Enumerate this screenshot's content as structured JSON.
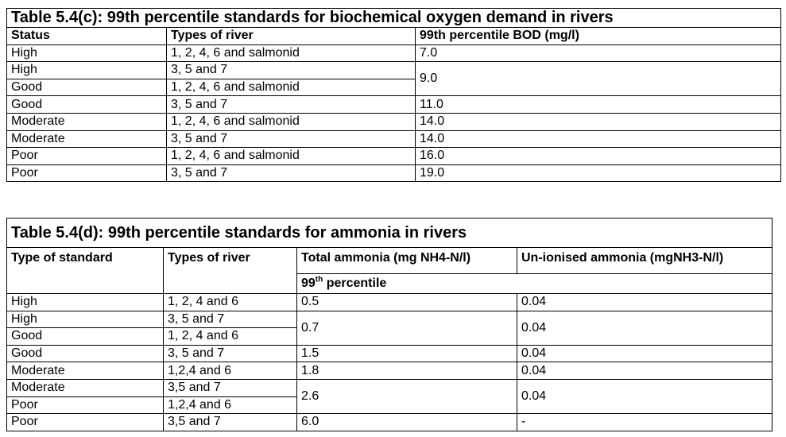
{
  "table_c": {
    "title": "Table 5.4(c): 99th percentile standards for biochemical oxygen demand in rivers",
    "headers": [
      "Status",
      "Types of river",
      "99th percentile BOD (mg/l)"
    ],
    "rows": [
      {
        "status": "High",
        "river": "1, 2, 4, 6 and salmonid",
        "value": "7.0"
      },
      {
        "status": "High",
        "river": "3, 5 and 7",
        "value": "9.0"
      },
      {
        "status": "Good",
        "river": "1, 2, 4,  6 and salmonid"
      },
      {
        "status": "Good",
        "river": "3, 5 and 7",
        "value": "11.0"
      },
      {
        "status": "Moderate",
        "river": "1, 2, 4, 6 and salmonid",
        "value": "14.0"
      },
      {
        "status": "Moderate",
        "river": "3, 5 and 7",
        "value": "14.0"
      },
      {
        "status": "Poor",
        "river": "1, 2, 4, 6 and salmonid",
        "value": "16.0"
      },
      {
        "status": "Poor",
        "river": "3, 5 and 7",
        "value": "19.0"
      }
    ]
  },
  "table_d": {
    "title": "Table 5.4(d): 99th percentile standards for ammonia in rivers",
    "headers": [
      "Type of standard",
      "Types of river",
      "Total ammonia (mg NH4-N/l)",
      "Un-ionised ammonia (mgNH3-N/l)"
    ],
    "sub_header": {
      "base": "99",
      "sup": "th",
      "rest": " percentile"
    },
    "rows": [
      {
        "status": "High",
        "river": "1, 2, 4 and 6",
        "total": "0.5",
        "unionised": "0.04"
      },
      {
        "status": "High",
        "river": "3, 5 and 7",
        "total": "0.7",
        "unionised": "0.04"
      },
      {
        "status": "Good",
        "river": "1, 2, 4 and 6"
      },
      {
        "status": "Good",
        "river": "3, 5 and 7",
        "total": "1.5",
        "unionised": "0.04"
      },
      {
        "status": "Moderate",
        "river": "1,2,4 and 6",
        "total": "1.8",
        "unionised": "0.04"
      },
      {
        "status": "Moderate",
        "river": "3,5 and 7",
        "total": "2.6",
        "unionised": "0.04"
      },
      {
        "status": "Poor",
        "river": "1,2,4 and 6"
      },
      {
        "status": "Poor",
        "river": "3,5 and 7",
        "total": "6.0",
        "unionised": "-"
      }
    ]
  }
}
